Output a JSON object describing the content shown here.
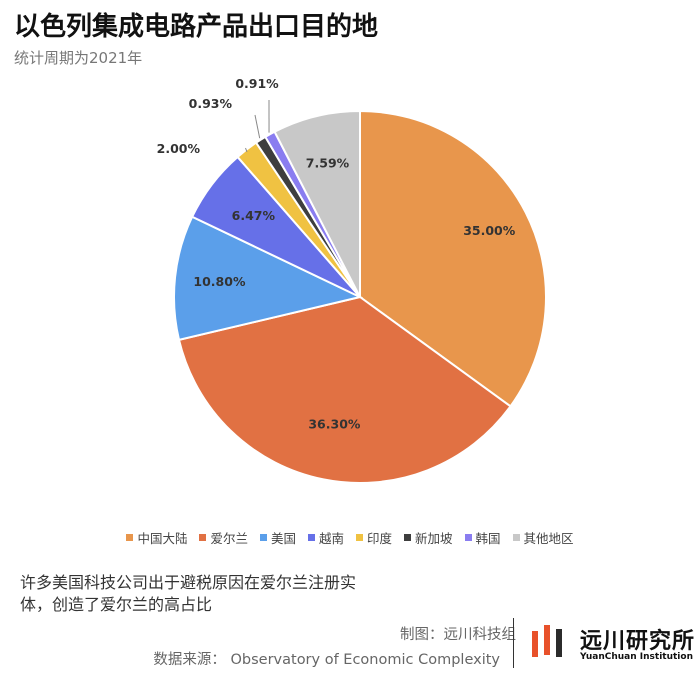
{
  "title": "以色列集成电路产品出口目的地",
  "subtitle": "统计周期为2021年",
  "chart_data": {
    "type": "pie",
    "categories": [
      "中国大陆",
      "爱尔兰",
      "美国",
      "越南",
      "印度",
      "新加坡",
      "韩国",
      "其他地区"
    ],
    "values": [
      35.0,
      36.3,
      10.8,
      6.47,
      2.0,
      0.93,
      0.91,
      7.59
    ],
    "labels": [
      "35.00%",
      "36.30%",
      "10.80%",
      "6.47%",
      "2.00%",
      "0.93%",
      "0.91%",
      "7.59%"
    ],
    "colors": [
      "#E8964C",
      "#E17143",
      "#5B9FEA",
      "#6670E8",
      "#F0C242",
      "#3E3E3E",
      "#8A7DF0",
      "#C8C8C8"
    ],
    "legend_position": "bottom",
    "start": "12 o'clock",
    "direction": "clockwise"
  },
  "note": "许多美国科技公司出于避税原因在爱尔兰注册实体，创造了爱尔兰的高占比",
  "credit": "制图：远川科技组",
  "source": "数据来源： Observatory of Economic Complexity",
  "logo": {
    "name_cn": "远川研究所",
    "name_en": "YuanChuan Institution",
    "colors": [
      "#E8512A",
      "#2B2B2B"
    ]
  }
}
